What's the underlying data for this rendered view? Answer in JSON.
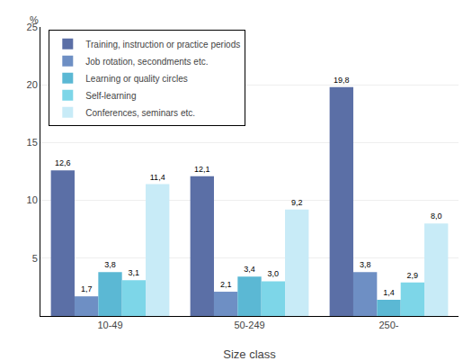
{
  "chart_data": {
    "type": "bar",
    "categories": [
      "10-49",
      "50-249",
      "250-"
    ],
    "series": [
      {
        "name": "Training, instruction or practice periods",
        "color": "#5B6FA6",
        "values": [
          12.6,
          12.1,
          19.8
        ],
        "value_labels": [
          "12,6",
          "12,1",
          "19,8"
        ]
      },
      {
        "name": "Job rotation, secondments etc.",
        "color": "#6E8FC4",
        "values": [
          1.7,
          2.1,
          3.8
        ],
        "value_labels": [
          "1,7",
          "2,1",
          "3,8"
        ]
      },
      {
        "name": "Learning or quality circles",
        "color": "#5BB8D4",
        "values": [
          3.8,
          3.4,
          1.4
        ],
        "value_labels": [
          "3,8",
          "3,4",
          "1,4"
        ]
      },
      {
        "name": "Self-learning",
        "color": "#7DD6E8",
        "values": [
          3.1,
          3.0,
          2.9
        ],
        "value_labels": [
          "3,1",
          "3,0",
          "2,9"
        ]
      },
      {
        "name": "Conferences, seminars etc.",
        "color": "#C8EBF7",
        "values": [
          11.4,
          9.2,
          8.0
        ],
        "value_labels": [
          "11,4",
          "9,2",
          "8,0"
        ]
      }
    ],
    "xlabel": "Size class",
    "ylabel": "%",
    "ylim": [
      0,
      25
    ],
    "yticks": [
      5,
      10,
      15,
      20,
      25
    ],
    "grid": true,
    "legend": "upper left",
    "data_labels": true
  }
}
